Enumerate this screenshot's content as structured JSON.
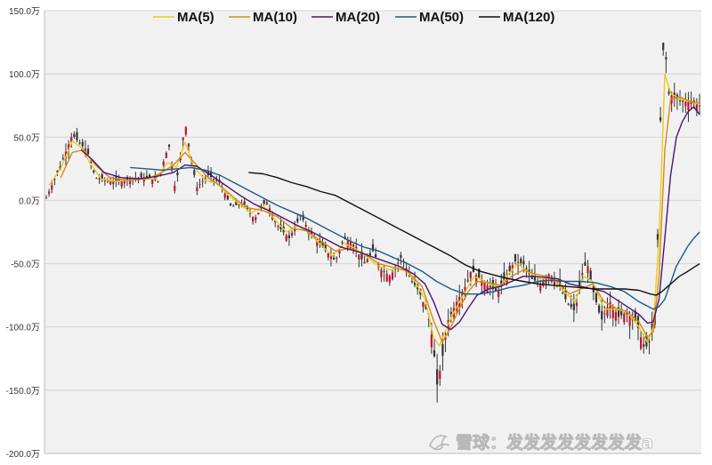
{
  "chart_data": {
    "type": "line",
    "title": "",
    "xlabel": "",
    "ylabel": "",
    "ylim": [
      -200,
      150
    ],
    "yticks": [
      150,
      100,
      50,
      0,
      -50,
      -100,
      -150,
      -200
    ],
    "ytick_labels": [
      "150.0万",
      "100.0万",
      "50.0万",
      "0.0万",
      "-50.0万",
      "-100.0万",
      "-150.0万",
      "-200.0万"
    ],
    "grid": true,
    "legend_position": "top",
    "candlesticks": {
      "color": "#333333",
      "up_color": "#c8102e",
      "description": "daily candlesticks (approx. 235 bars) underlying the moving averages",
      "close_trace": [
        [
          0,
          2
        ],
        [
          5,
          28
        ],
        [
          9,
          52
        ],
        [
          12,
          44
        ],
        [
          14,
          40
        ],
        [
          17,
          18
        ],
        [
          22,
          15
        ],
        [
          26,
          15
        ],
        [
          30,
          18
        ],
        [
          35,
          18
        ],
        [
          39,
          15
        ],
        [
          41,
          35
        ],
        [
          43,
          45
        ],
        [
          44,
          8
        ],
        [
          46,
          25
        ],
        [
          48,
          62
        ],
        [
          50,
          35
        ],
        [
          52,
          10
        ],
        [
          56,
          20
        ],
        [
          60,
          14
        ],
        [
          64,
          -5
        ],
        [
          68,
          -2
        ],
        [
          72,
          -15
        ],
        [
          76,
          0
        ],
        [
          80,
          -20
        ],
        [
          84,
          -30
        ],
        [
          88,
          -12
        ],
        [
          92,
          -28
        ],
        [
          96,
          -38
        ],
        [
          100,
          -48
        ],
        [
          103,
          -30
        ],
        [
          106,
          -34
        ],
        [
          110,
          -50
        ],
        [
          113,
          -40
        ],
        [
          116,
          -55
        ],
        [
          119,
          -60
        ],
        [
          123,
          -44
        ],
        [
          126,
          -62
        ],
        [
          129,
          -72
        ],
        [
          132,
          -90
        ],
        [
          134,
          -115
        ],
        [
          135,
          -148
        ],
        [
          137,
          -125
        ],
        [
          139,
          -95
        ],
        [
          142,
          -80
        ],
        [
          145,
          -68
        ],
        [
          147,
          -55
        ],
        [
          150,
          -62
        ],
        [
          153,
          -68
        ],
        [
          156,
          -72
        ],
        [
          159,
          -62
        ],
        [
          162,
          -48
        ],
        [
          165,
          -50
        ],
        [
          168,
          -62
        ],
        [
          171,
          -66
        ],
        [
          174,
          -58
        ],
        [
          177,
          -64
        ],
        [
          180,
          -80
        ],
        [
          183,
          -88
        ],
        [
          185,
          -60
        ],
        [
          187,
          -48
        ],
        [
          189,
          -70
        ],
        [
          192,
          -95
        ],
        [
          195,
          -80
        ],
        [
          198,
          -92
        ],
        [
          201,
          -88
        ],
        [
          204,
          -95
        ],
        [
          207,
          -118
        ],
        [
          209,
          -110
        ],
        [
          211,
          -85
        ],
        [
          212,
          20
        ],
        [
          213,
          110
        ],
        [
          214,
          130
        ],
        [
          215,
          85
        ],
        [
          217,
          82
        ],
        [
          220,
          78
        ],
        [
          223,
          78
        ],
        [
          226,
          75
        ]
      ]
    },
    "x": [
      0,
      226
    ],
    "series": [
      {
        "name": "MA(5)",
        "color": "#e8cc1e",
        "points": [
          [
            1,
            12
          ],
          [
            5,
            25
          ],
          [
            9,
            47
          ],
          [
            12,
            42
          ],
          [
            15,
            30
          ],
          [
            19,
            17
          ],
          [
            24,
            15
          ],
          [
            28,
            16
          ],
          [
            33,
            17
          ],
          [
            38,
            17
          ],
          [
            42,
            30
          ],
          [
            45,
            26
          ],
          [
            48,
            46
          ],
          [
            51,
            27
          ],
          [
            55,
            16
          ],
          [
            59,
            14
          ],
          [
            63,
            4
          ],
          [
            67,
            -3
          ],
          [
            71,
            -10
          ],
          [
            75,
            -4
          ],
          [
            79,
            -15
          ],
          [
            83,
            -25
          ],
          [
            87,
            -20
          ],
          [
            91,
            -26
          ],
          [
            95,
            -35
          ],
          [
            99,
            -44
          ],
          [
            103,
            -34
          ],
          [
            107,
            -38
          ],
          [
            111,
            -45
          ],
          [
            115,
            -52
          ],
          [
            119,
            -55
          ],
          [
            123,
            -52
          ],
          [
            127,
            -62
          ],
          [
            131,
            -78
          ],
          [
            134,
            -108
          ],
          [
            136,
            -115
          ],
          [
            139,
            -98
          ],
          [
            142,
            -84
          ],
          [
            145,
            -72
          ],
          [
            148,
            -60
          ],
          [
            151,
            -63
          ],
          [
            154,
            -67
          ],
          [
            157,
            -68
          ],
          [
            160,
            -58
          ],
          [
            163,
            -50
          ],
          [
            167,
            -57
          ],
          [
            171,
            -62
          ],
          [
            175,
            -61
          ],
          [
            179,
            -72
          ],
          [
            183,
            -80
          ],
          [
            186,
            -60
          ],
          [
            189,
            -64
          ],
          [
            193,
            -86
          ],
          [
            197,
            -86
          ],
          [
            201,
            -88
          ],
          [
            205,
            -100
          ],
          [
            208,
            -112
          ],
          [
            210,
            -100
          ],
          [
            212,
            -30
          ],
          [
            214,
            100
          ],
          [
            216,
            85
          ],
          [
            219,
            80
          ],
          [
            223,
            78
          ],
          [
            226,
            76
          ]
        ]
      },
      {
        "name": "MA(10)",
        "color": "#d98816",
        "points": [
          [
            5,
            18
          ],
          [
            9,
            38
          ],
          [
            13,
            40
          ],
          [
            17,
            28
          ],
          [
            22,
            18
          ],
          [
            28,
            16
          ],
          [
            35,
            17
          ],
          [
            40,
            22
          ],
          [
            44,
            28
          ],
          [
            48,
            38
          ],
          [
            52,
            28
          ],
          [
            56,
            18
          ],
          [
            61,
            10
          ],
          [
            66,
            0
          ],
          [
            70,
            -6
          ],
          [
            75,
            -8
          ],
          [
            80,
            -13
          ],
          [
            85,
            -22
          ],
          [
            90,
            -24
          ],
          [
            95,
            -32
          ],
          [
            100,
            -40
          ],
          [
            105,
            -38
          ],
          [
            110,
            -42
          ],
          [
            115,
            -50
          ],
          [
            120,
            -53
          ],
          [
            125,
            -56
          ],
          [
            130,
            -68
          ],
          [
            134,
            -95
          ],
          [
            137,
            -112
          ],
          [
            140,
            -100
          ],
          [
            143,
            -85
          ],
          [
            146,
            -72
          ],
          [
            149,
            -64
          ],
          [
            153,
            -65
          ],
          [
            157,
            -67
          ],
          [
            161,
            -60
          ],
          [
            165,
            -55
          ],
          [
            169,
            -58
          ],
          [
            173,
            -60
          ],
          [
            177,
            -64
          ],
          [
            181,
            -74
          ],
          [
            185,
            -70
          ],
          [
            189,
            -66
          ],
          [
            193,
            -80
          ],
          [
            197,
            -85
          ],
          [
            201,
            -88
          ],
          [
            205,
            -96
          ],
          [
            208,
            -108
          ],
          [
            210,
            -104
          ],
          [
            212,
            -60
          ],
          [
            214,
            40
          ],
          [
            216,
            80
          ],
          [
            219,
            82
          ],
          [
            223,
            78
          ],
          [
            226,
            77
          ]
        ]
      },
      {
        "name": "MA(20)",
        "color": "#4b1470",
        "points": [
          [
            12,
            40
          ],
          [
            16,
            32
          ],
          [
            20,
            22
          ],
          [
            26,
            18
          ],
          [
            32,
            17
          ],
          [
            38,
            19
          ],
          [
            44,
            22
          ],
          [
            48,
            28
          ],
          [
            52,
            27
          ],
          [
            57,
            20
          ],
          [
            62,
            12
          ],
          [
            67,
            4
          ],
          [
            72,
            -3
          ],
          [
            77,
            -8
          ],
          [
            82,
            -14
          ],
          [
            87,
            -20
          ],
          [
            92,
            -25
          ],
          [
            97,
            -31
          ],
          [
            102,
            -37
          ],
          [
            107,
            -40
          ],
          [
            112,
            -44
          ],
          [
            117,
            -48
          ],
          [
            122,
            -52
          ],
          [
            127,
            -58
          ],
          [
            131,
            -66
          ],
          [
            134,
            -80
          ],
          [
            137,
            -98
          ],
          [
            140,
            -102
          ],
          [
            143,
            -96
          ],
          [
            146,
            -85
          ],
          [
            149,
            -75
          ],
          [
            153,
            -70
          ],
          [
            157,
            -68
          ],
          [
            161,
            -64
          ],
          [
            165,
            -60
          ],
          [
            169,
            -60
          ],
          [
            173,
            -61
          ],
          [
            177,
            -62
          ],
          [
            181,
            -66
          ],
          [
            185,
            -68
          ],
          [
            189,
            -70
          ],
          [
            193,
            -72
          ],
          [
            197,
            -78
          ],
          [
            201,
            -84
          ],
          [
            205,
            -90
          ],
          [
            208,
            -97
          ],
          [
            210,
            -96
          ],
          [
            212,
            -78
          ],
          [
            214,
            -30
          ],
          [
            216,
            20
          ],
          [
            218,
            50
          ],
          [
            220,
            62
          ],
          [
            222,
            70
          ],
          [
            224,
            74
          ],
          [
            226,
            68
          ]
        ]
      },
      {
        "name": "MA(50)",
        "color": "#1c5b8c",
        "points": [
          [
            29,
            26
          ],
          [
            35,
            25
          ],
          [
            40,
            24
          ],
          [
            45,
            25
          ],
          [
            50,
            26
          ],
          [
            55,
            24
          ],
          [
            60,
            20
          ],
          [
            65,
            14
          ],
          [
            70,
            8
          ],
          [
            75,
            2
          ],
          [
            80,
            -4
          ],
          [
            85,
            -9
          ],
          [
            90,
            -14
          ],
          [
            95,
            -20
          ],
          [
            100,
            -26
          ],
          [
            105,
            -32
          ],
          [
            110,
            -37
          ],
          [
            115,
            -40
          ],
          [
            120,
            -45
          ],
          [
            125,
            -50
          ],
          [
            130,
            -56
          ],
          [
            135,
            -64
          ],
          [
            140,
            -70
          ],
          [
            145,
            -74
          ],
          [
            150,
            -74
          ],
          [
            155,
            -72
          ],
          [
            160,
            -69
          ],
          [
            165,
            -67
          ],
          [
            170,
            -64
          ],
          [
            175,
            -63
          ],
          [
            180,
            -64
          ],
          [
            185,
            -64
          ],
          [
            190,
            -65
          ],
          [
            195,
            -68
          ],
          [
            200,
            -72
          ],
          [
            205,
            -80
          ],
          [
            210,
            -86
          ],
          [
            212,
            -84
          ],
          [
            214,
            -78
          ],
          [
            216,
            -65
          ],
          [
            218,
            -52
          ],
          [
            220,
            -44
          ],
          [
            222,
            -36
          ],
          [
            224,
            -30
          ],
          [
            226,
            -25
          ]
        ]
      },
      {
        "name": "MA(120)",
        "color": "#111111",
        "points": [
          [
            70,
            22
          ],
          [
            75,
            21
          ],
          [
            80,
            18
          ],
          [
            85,
            14
          ],
          [
            90,
            11
          ],
          [
            95,
            7
          ],
          [
            100,
            4
          ],
          [
            105,
            -2
          ],
          [
            110,
            -8
          ],
          [
            115,
            -14
          ],
          [
            120,
            -20
          ],
          [
            125,
            -26
          ],
          [
            130,
            -32
          ],
          [
            135,
            -38
          ],
          [
            140,
            -44
          ],
          [
            145,
            -51
          ],
          [
            150,
            -56
          ],
          [
            155,
            -59
          ],
          [
            160,
            -62
          ],
          [
            165,
            -64
          ],
          [
            170,
            -66
          ],
          [
            175,
            -67
          ],
          [
            180,
            -68
          ],
          [
            185,
            -69
          ],
          [
            190,
            -70
          ],
          [
            195,
            -70
          ],
          [
            200,
            -70
          ],
          [
            205,
            -71
          ],
          [
            209,
            -74
          ],
          [
            211,
            -75
          ],
          [
            213,
            -72
          ],
          [
            215,
            -68
          ],
          [
            217,
            -64
          ],
          [
            219,
            -60
          ],
          [
            222,
            -56
          ],
          [
            224,
            -53
          ],
          [
            226,
            -50
          ]
        ]
      }
    ]
  },
  "watermark": {
    "text": "雪球：发发发发发发发发a",
    "icon": "snowball-logo-icon"
  }
}
